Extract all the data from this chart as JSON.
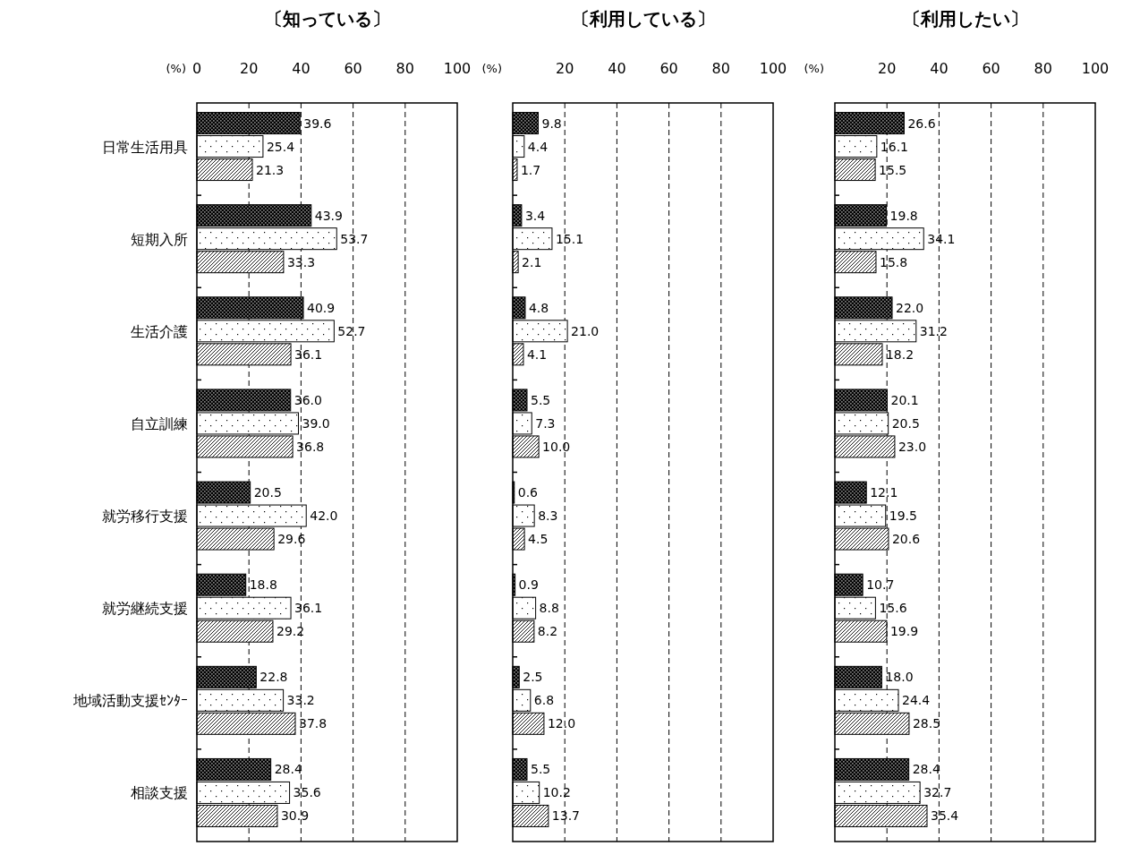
{
  "chart_data": [
    {
      "type": "bar",
      "orientation": "horizontal",
      "title": "〔知っている〕",
      "xlabel": "(%)",
      "categories": [
        "日常生活用具",
        "短期入所",
        "生活介護",
        "自立訓練",
        "就労移行支援",
        "就労継続支援",
        "地域活動支援ｾﾝﾀｰ",
        "相談支援"
      ],
      "series": [
        {
          "color": "#000000",
          "values": [
            39.6,
            43.9,
            40.9,
            36.0,
            20.5,
            18.8,
            22.8,
            28.4
          ],
          "value_labels": [
            "39.6",
            "43.9",
            "40.9",
            "36.0",
            "20.5",
            "18.8",
            "22.8",
            "28.4"
          ]
        },
        {
          "color": "#000000",
          "values": [
            25.4,
            53.7,
            52.7,
            39.0,
            42.0,
            36.1,
            33.2,
            35.6
          ],
          "value_labels": [
            "25.4",
            "53.7",
            "52.7",
            "39.0",
            "42.0",
            "36.1",
            "33.2",
            "35.6"
          ]
        },
        {
          "color": "#000000",
          "values": [
            21.3,
            33.3,
            36.1,
            36.8,
            29.6,
            29.2,
            37.8,
            30.9
          ],
          "value_labels": [
            "21.3",
            "33.3",
            "36.1",
            "36.8",
            "29.6",
            "29.2",
            "37.8",
            "30.9"
          ]
        }
      ],
      "xlim": [
        0,
        100
      ],
      "xticks": [
        0,
        20,
        40,
        60,
        80,
        100
      ],
      "grid": "x"
    },
    {
      "type": "bar",
      "orientation": "horizontal",
      "title": "〔利用している〕",
      "xlabel": "(%)",
      "categories": [
        null,
        null,
        null,
        null,
        null,
        null,
        null,
        null
      ],
      "series": [
        {
          "color": "#000000",
          "values": [
            9.8,
            3.4,
            4.8,
            5.5,
            0.6,
            0.9,
            2.5,
            5.5
          ],
          "value_labels": [
            "9.8",
            "3.4",
            "4.8",
            "5.5",
            "0.6",
            "0.9",
            "2.5",
            "5.5"
          ]
        },
        {
          "color": "#000000",
          "values": [
            4.4,
            15.1,
            21.0,
            7.3,
            8.3,
            8.8,
            6.8,
            10.2
          ],
          "value_labels": [
            "4.4",
            "15.1",
            "21.0",
            "7.3",
            "8.3",
            "8.8",
            "6.8",
            "10.2"
          ]
        },
        {
          "color": "#000000",
          "values": [
            1.7,
            2.1,
            4.1,
            10.0,
            4.5,
            8.2,
            12.0,
            13.7
          ],
          "value_labels": [
            "1.7",
            "2.1",
            "4.1",
            "10.0",
            "4.5",
            "8.2",
            "12.0",
            "13.7"
          ]
        }
      ],
      "xlim": [
        0,
        100
      ],
      "xticks": [
        {
          "value": 0,
          "label": null
        },
        20,
        40,
        60,
        80,
        100
      ],
      "grid": "x"
    },
    {
      "type": "bar",
      "orientation": "horizontal",
      "title": "〔利用したい〕",
      "xlabel": "(%)",
      "categories": [
        null,
        null,
        null,
        null,
        null,
        null,
        null,
        null
      ],
      "series": [
        {
          "color": "#000000",
          "values": [
            26.6,
            19.8,
            22.0,
            20.1,
            12.1,
            10.7,
            18.0,
            28.4
          ],
          "value_labels": [
            "26.6",
            "19.8",
            "22.0",
            "20.1",
            "12.1",
            "10.7",
            "18.0",
            "28.4"
          ]
        },
        {
          "color": "#000000",
          "values": [
            16.1,
            34.1,
            31.2,
            20.5,
            19.5,
            15.6,
            24.4,
            32.7
          ],
          "value_labels": [
            "16.1",
            "34.1",
            "31.2",
            "20.5",
            "19.5",
            "15.6",
            "24.4",
            "32.7"
          ]
        },
        {
          "color": "#000000",
          "values": [
            15.5,
            15.8,
            18.2,
            23.0,
            20.6,
            19.9,
            28.5,
            35.4
          ],
          "value_labels": [
            "15.5",
            "15.8",
            "18.2",
            "23.0",
            "20.6",
            "19.9",
            "28.5",
            "35.4"
          ]
        }
      ],
      "xlim": [
        0,
        100
      ],
      "xticks": [
        {
          "value": 0,
          "label": null
        },
        20,
        40,
        60,
        80,
        100
      ],
      "grid": "x"
    }
  ]
}
